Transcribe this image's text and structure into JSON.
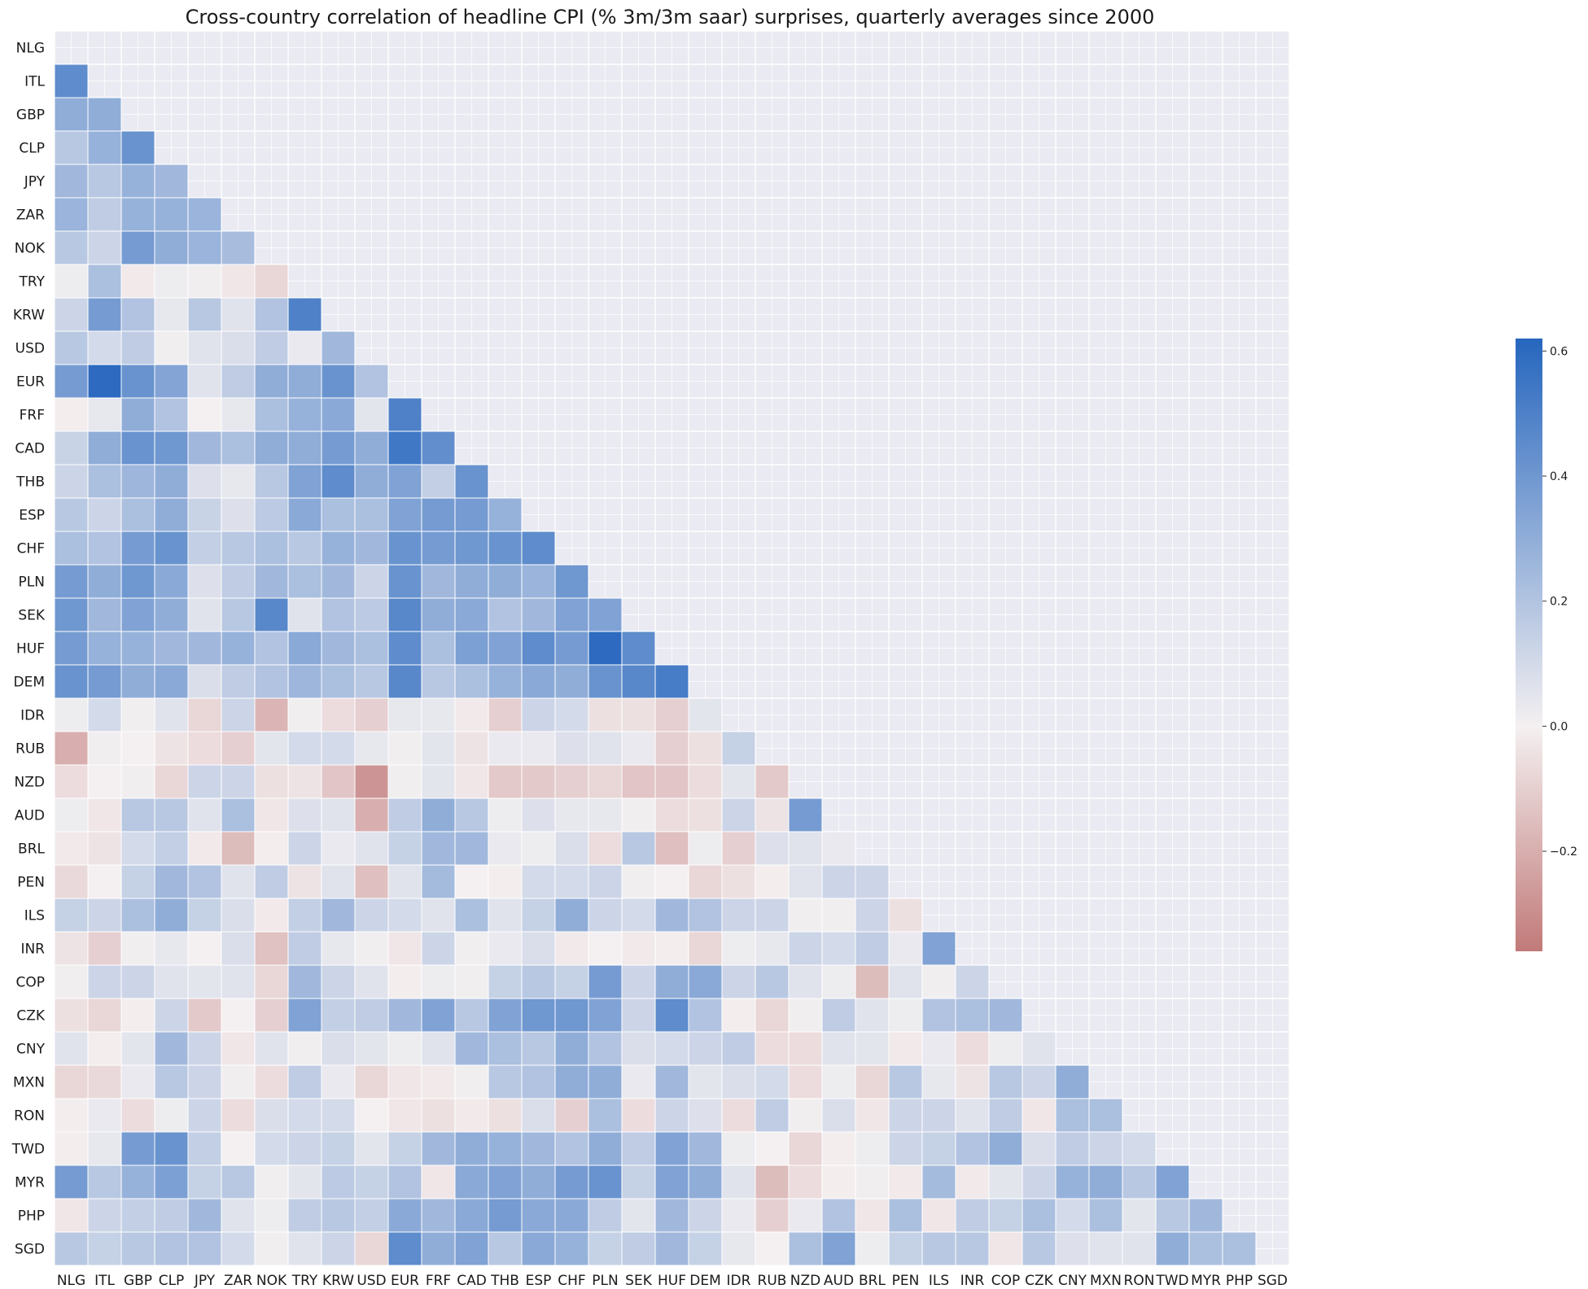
{
  "chart_data": {
    "type": "heatmap",
    "title": "Cross-country correlation of headline CPI (% 3m/3m saar) surprises, quarterly averages since 2000",
    "labels": [
      "NLG",
      "ITL",
      "GBP",
      "CLP",
      "JPY",
      "ZAR",
      "NOK",
      "TRY",
      "KRW",
      "USD",
      "EUR",
      "FRF",
      "CAD",
      "THB",
      "ESP",
      "CHF",
      "PLN",
      "SEK",
      "HUF",
      "DEM",
      "IDR",
      "RUB",
      "NZD",
      "AUD",
      "BRL",
      "PEN",
      "ILS",
      "INR",
      "COP",
      "CZK",
      "CNY",
      "MXN",
      "RON",
      "TWD",
      "MYR",
      "PHP",
      "SGD"
    ],
    "masked": "upper triangle including diagonal",
    "matrix": [
      [],
      [
        0.45
      ],
      [
        0.3,
        0.3
      ],
      [
        0.18,
        0.28,
        0.42
      ],
      [
        0.25,
        0.18,
        0.28,
        0.25
      ],
      [
        0.27,
        0.16,
        0.28,
        0.28,
        0.27
      ],
      [
        0.18,
        0.12,
        0.38,
        0.3,
        0.27,
        0.23
      ],
      [
        0.02,
        0.22,
        -0.02,
        0.02,
        0.01,
        -0.03,
        -0.08
      ],
      [
        0.12,
        0.38,
        0.2,
        0.04,
        0.18,
        0.06,
        0.2,
        0.5
      ],
      [
        0.18,
        0.1,
        0.16,
        0.01,
        0.06,
        0.08,
        0.16,
        0.03,
        0.25
      ],
      [
        0.38,
        0.6,
        0.42,
        0.34,
        0.06,
        0.16,
        0.3,
        0.3,
        0.42,
        0.2
      ],
      [
        -0.01,
        0.04,
        0.3,
        0.2,
        0.0,
        0.04,
        0.22,
        0.28,
        0.32,
        0.05,
        0.5
      ],
      [
        0.13,
        0.3,
        0.42,
        0.4,
        0.25,
        0.22,
        0.3,
        0.3,
        0.38,
        0.3,
        0.54,
        0.44
      ],
      [
        0.12,
        0.22,
        0.26,
        0.3,
        0.07,
        0.04,
        0.18,
        0.35,
        0.45,
        0.3,
        0.35,
        0.15,
        0.42
      ],
      [
        0.18,
        0.12,
        0.22,
        0.3,
        0.13,
        0.07,
        0.17,
        0.32,
        0.22,
        0.22,
        0.35,
        0.38,
        0.38,
        0.28
      ],
      [
        0.22,
        0.2,
        0.38,
        0.42,
        0.15,
        0.18,
        0.22,
        0.18,
        0.28,
        0.25,
        0.42,
        0.38,
        0.4,
        0.42,
        0.45
      ],
      [
        0.38,
        0.3,
        0.4,
        0.32,
        0.07,
        0.16,
        0.25,
        0.22,
        0.25,
        0.12,
        0.42,
        0.25,
        0.3,
        0.3,
        0.27,
        0.4
      ],
      [
        0.4,
        0.25,
        0.35,
        0.3,
        0.06,
        0.18,
        0.47,
        0.06,
        0.2,
        0.17,
        0.47,
        0.3,
        0.32,
        0.2,
        0.25,
        0.35,
        0.35
      ],
      [
        0.38,
        0.28,
        0.28,
        0.25,
        0.25,
        0.28,
        0.2,
        0.32,
        0.25,
        0.22,
        0.45,
        0.22,
        0.36,
        0.35,
        0.45,
        0.38,
        0.6,
        0.45
      ],
      [
        0.42,
        0.38,
        0.3,
        0.32,
        0.08,
        0.16,
        0.2,
        0.26,
        0.22,
        0.18,
        0.47,
        0.18,
        0.22,
        0.28,
        0.32,
        0.3,
        0.42,
        0.47,
        0.52
      ],
      [
        0.02,
        0.1,
        0.01,
        0.06,
        -0.08,
        0.12,
        -0.18,
        0.01,
        -0.06,
        -0.1,
        0.04,
        0.04,
        -0.02,
        -0.1,
        0.12,
        0.1,
        -0.05,
        -0.05,
        -0.1,
        0.05
      ],
      [
        -0.2,
        0.01,
        0.0,
        -0.04,
        -0.06,
        -0.1,
        0.05,
        0.1,
        0.1,
        0.04,
        0.01,
        0.05,
        -0.04,
        0.03,
        0.03,
        0.07,
        0.06,
        0.03,
        -0.1,
        -0.05,
        0.14
      ],
      [
        -0.06,
        0.0,
        0.01,
        -0.08,
        0.12,
        0.12,
        -0.05,
        -0.04,
        -0.13,
        -0.28,
        0.01,
        0.05,
        -0.03,
        -0.12,
        -0.12,
        -0.1,
        -0.08,
        -0.13,
        -0.13,
        -0.06,
        0.05,
        -0.12
      ],
      [
        0.02,
        -0.03,
        0.18,
        0.18,
        0.06,
        0.22,
        -0.03,
        0.07,
        0.06,
        -0.2,
        0.16,
        0.3,
        0.18,
        0.02,
        0.07,
        0.04,
        0.04,
        0.01,
        -0.06,
        -0.05,
        0.12,
        -0.04,
        0.38
      ],
      [
        -0.02,
        -0.04,
        0.1,
        0.15,
        -0.02,
        -0.16,
        -0.01,
        0.12,
        0.03,
        0.06,
        0.14,
        0.25,
        0.25,
        0.03,
        0.02,
        0.08,
        -0.06,
        0.18,
        -0.15,
        0.02,
        -0.1,
        0.07,
        0.06,
        0.03
      ],
      [
        -0.07,
        0.0,
        0.14,
        0.25,
        0.2,
        0.06,
        0.16,
        -0.04,
        0.06,
        -0.15,
        0.06,
        0.24,
        0.0,
        -0.01,
        0.1,
        0.1,
        0.12,
        0.01,
        0.0,
        -0.08,
        -0.05,
        -0.01,
        0.06,
        0.12,
        0.12
      ],
      [
        0.14,
        0.12,
        0.22,
        0.3,
        0.14,
        0.08,
        -0.02,
        0.15,
        0.25,
        0.12,
        0.1,
        0.06,
        0.22,
        0.06,
        0.14,
        0.3,
        0.12,
        0.1,
        0.25,
        0.2,
        0.12,
        0.12,
        0.01,
        0.01,
        0.12,
        -0.05
      ],
      [
        -0.04,
        -0.1,
        0.01,
        0.04,
        0.0,
        0.08,
        -0.14,
        0.16,
        0.04,
        0.01,
        -0.03,
        0.12,
        0.01,
        0.03,
        0.08,
        -0.02,
        0.0,
        -0.02,
        -0.01,
        -0.08,
        0.02,
        0.04,
        0.12,
        0.1,
        0.16,
        0.03,
        0.35
      ],
      [
        0.01,
        0.12,
        0.12,
        0.06,
        0.05,
        0.06,
        -0.08,
        0.25,
        0.12,
        0.06,
        -0.01,
        0.02,
        0.01,
        0.14,
        0.18,
        0.14,
        0.38,
        0.12,
        0.3,
        0.32,
        0.12,
        0.18,
        0.06,
        0.02,
        -0.16,
        0.06,
        0.01,
        0.12
      ],
      [
        -0.05,
        -0.08,
        -0.01,
        0.12,
        -0.12,
        0.0,
        -0.1,
        0.35,
        0.15,
        0.16,
        0.25,
        0.35,
        0.18,
        0.35,
        0.4,
        0.4,
        0.35,
        0.12,
        0.45,
        0.2,
        -0.01,
        -0.08,
        0.01,
        0.16,
        0.06,
        0.02,
        0.2,
        0.22,
        0.25
      ],
      [
        0.06,
        -0.01,
        0.05,
        0.25,
        0.12,
        -0.03,
        0.06,
        0.01,
        0.08,
        0.05,
        0.02,
        0.06,
        0.25,
        0.22,
        0.18,
        0.3,
        0.2,
        0.08,
        0.1,
        0.12,
        0.16,
        -0.06,
        -0.06,
        0.06,
        0.05,
        -0.02,
        0.03,
        -0.06,
        0.02,
        0.06
      ],
      [
        -0.08,
        -0.07,
        0.03,
        0.18,
        0.12,
        0.01,
        -0.06,
        0.16,
        0.03,
        -0.08,
        -0.03,
        -0.02,
        0.01,
        0.18,
        0.2,
        0.3,
        0.3,
        0.03,
        0.25,
        0.05,
        0.08,
        0.1,
        -0.06,
        0.02,
        -0.08,
        0.18,
        0.04,
        -0.04,
        0.18,
        0.12,
        0.3
      ],
      [
        -0.01,
        0.03,
        -0.06,
        0.02,
        0.12,
        -0.06,
        0.08,
        0.1,
        0.1,
        0.0,
        -0.03,
        -0.05,
        -0.02,
        -0.05,
        0.08,
        -0.1,
        0.22,
        -0.06,
        0.12,
        0.07,
        -0.06,
        0.16,
        0.01,
        0.08,
        -0.03,
        0.12,
        0.12,
        0.06,
        0.16,
        -0.03,
        0.22,
        0.22
      ],
      [
        -0.01,
        0.04,
        0.38,
        0.42,
        0.15,
        0.0,
        0.1,
        0.12,
        0.14,
        0.05,
        0.14,
        0.25,
        0.3,
        0.28,
        0.25,
        0.2,
        0.3,
        0.16,
        0.35,
        0.25,
        0.02,
        0.0,
        -0.08,
        -0.01,
        0.02,
        0.12,
        0.14,
        0.2,
        0.3,
        0.08,
        0.16,
        0.12,
        0.1
      ],
      [
        0.38,
        0.18,
        0.28,
        0.36,
        0.14,
        0.18,
        0.01,
        0.05,
        0.17,
        0.14,
        0.2,
        -0.03,
        0.32,
        0.35,
        0.3,
        0.38,
        0.42,
        0.14,
        0.35,
        0.3,
        0.06,
        -0.16,
        -0.06,
        -0.01,
        0.01,
        -0.02,
        0.24,
        -0.02,
        0.05,
        0.12,
        0.28,
        0.3,
        0.18,
        0.35
      ],
      [
        -0.03,
        0.12,
        0.15,
        0.16,
        0.25,
        0.06,
        0.02,
        0.16,
        0.18,
        0.15,
        0.32,
        0.25,
        0.32,
        0.38,
        0.32,
        0.32,
        0.16,
        0.05,
        0.25,
        0.12,
        0.03,
        -0.1,
        0.03,
        0.2,
        -0.03,
        0.22,
        -0.03,
        0.16,
        0.14,
        0.22,
        0.1,
        0.22,
        0.05,
        0.18,
        0.25
      ],
      [
        0.18,
        0.14,
        0.18,
        0.2,
        0.2,
        0.1,
        0.01,
        0.06,
        0.12,
        -0.08,
        0.45,
        0.3,
        0.35,
        0.18,
        0.32,
        0.28,
        0.14,
        0.16,
        0.25,
        0.14,
        0.04,
        0.0,
        0.22,
        0.35,
        0.02,
        0.14,
        0.18,
        0.18,
        -0.03,
        0.18,
        0.07,
        0.06,
        0.06,
        0.3,
        0.22,
        0.22
      ]
    ],
    "colorbar": {
      "min": -0.36,
      "max": 0.62,
      "ticks": [
        0.6,
        0.4,
        0.2,
        0.0,
        -0.2
      ],
      "tick_labels": [
        "0.6",
        "0.4",
        "0.2",
        "0.0",
        "−0.2"
      ],
      "colors": {
        "negative": "#c17a79",
        "neutral": "#f4f0f1",
        "positive": "#2666be"
      }
    },
    "background": "#eaeaf2",
    "grid": true
  }
}
